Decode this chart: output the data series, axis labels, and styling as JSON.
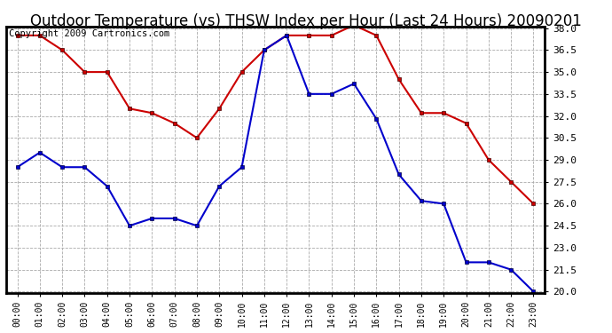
{
  "title": "Outdoor Temperature (vs) THSW Index per Hour (Last 24 Hours) 20090201",
  "copyright": "Copyright 2009 Cartronics.com",
  "hours": [
    "00:00",
    "01:00",
    "02:00",
    "03:00",
    "04:00",
    "05:00",
    "06:00",
    "07:00",
    "08:00",
    "09:00",
    "10:00",
    "11:00",
    "12:00",
    "13:00",
    "14:00",
    "15:00",
    "16:00",
    "17:00",
    "18:00",
    "19:00",
    "20:00",
    "21:00",
    "22:00",
    "23:00"
  ],
  "red_data": [
    37.5,
    37.5,
    36.5,
    35.0,
    35.0,
    32.5,
    32.2,
    31.5,
    30.5,
    32.5,
    35.0,
    36.5,
    37.5,
    37.5,
    37.5,
    38.2,
    37.5,
    34.5,
    32.2,
    32.2,
    31.5,
    29.0,
    27.5,
    26.0
  ],
  "blue_data": [
    28.5,
    29.5,
    28.5,
    28.5,
    27.2,
    24.5,
    25.0,
    25.0,
    24.5,
    27.2,
    28.5,
    36.5,
    37.5,
    33.5,
    33.5,
    34.2,
    31.8,
    28.0,
    26.2,
    26.0,
    22.0,
    22.0,
    21.5,
    20.0
  ],
  "red_color": "#cc0000",
  "blue_color": "#0000cc",
  "bg_color": "#ffffff",
  "grid_color": "#aaaaaa",
  "ylim_min": 20.0,
  "ylim_max": 38.0,
  "ytick_step": 1.5,
  "title_fontsize": 12,
  "copyright_fontsize": 7.5
}
